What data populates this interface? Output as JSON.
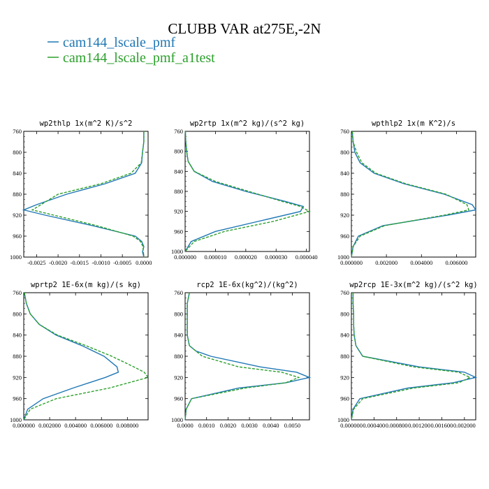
{
  "header": {
    "title": "CLUBB VAR at275E,-2N"
  },
  "legend": [
    {
      "label": "cam144_lscale_pmf",
      "color": "#1f77b4",
      "dashed": false
    },
    {
      "label": "cam144_lscale_pmf_a1test",
      "color": "#2ca02c",
      "dashed": true
    }
  ],
  "chart_data": [
    {
      "type": "line",
      "title": "wp2thlp  1x(m^2 K)/s^2",
      "xlim": [
        -0.0028,
        0.0001
      ],
      "ylim": [
        760,
        1000
      ],
      "y_inverted": true,
      "xticks": [
        -0.0025,
        -0.002,
        -0.0015,
        -0.001,
        -0.0005,
        0.0
      ],
      "xtick_labels": [
        "-0.0025",
        "-0.0020",
        "-0.0015",
        "-0.0010",
        "-0.0005",
        "0.0000"
      ],
      "yticks": [
        760,
        800,
        840,
        880,
        920,
        960,
        1000
      ],
      "y": [
        760,
        780,
        800,
        820,
        840,
        860,
        880,
        900,
        910,
        920,
        940,
        960,
        970,
        980,
        990,
        1000
      ],
      "series": [
        {
          "name": "cam144_lscale_pmf",
          "values": [
            0.0,
            0.0,
            -3e-05,
            -5e-05,
            -0.0002,
            -0.0009,
            -0.0018,
            -0.0025,
            -0.0028,
            -0.0023,
            -0.0012,
            -0.0002,
            -5e-05,
            0.0,
            -3e-05,
            0.0
          ]
        },
        {
          "name": "cam144_lscale_pmf_a1test",
          "values": [
            0.0,
            0.0,
            -3e-05,
            -6e-05,
            -0.0003,
            -0.001,
            -0.002,
            -0.0024,
            -0.0026,
            -0.0021,
            -0.0011,
            -0.00025,
            -8e-05,
            -2e-05,
            -1e-05,
            0.0
          ]
        }
      ]
    },
    {
      "type": "line",
      "title": "wp2rtp  1x(m^2 kg)/(s^2 kg)",
      "xlim": [
        0.0,
        4.1e-05
      ],
      "ylim": [
        760,
        1000
      ],
      "y_inverted": true,
      "xticks": [
        0.0,
        1e-05,
        2e-05,
        3e-05,
        4e-05
      ],
      "xtick_labels": [
        "0.000000",
        "0.000010",
        "0.000020",
        "0.000030",
        "0.000040"
      ],
      "yticks": [
        760,
        800,
        840,
        880,
        920,
        960,
        1000
      ],
      "y": [
        760,
        780,
        800,
        820,
        840,
        860,
        880,
        900,
        910,
        920,
        940,
        960,
        980,
        1000
      ],
      "series": [
        {
          "name": "cam144_lscale_pmf",
          "values": [
            1e-07,
            2e-07,
            5e-07,
            1e-06,
            3e-06,
            9e-06,
            2e-05,
            3.3e-05,
            3.9e-05,
            3.8e-05,
            2.4e-05,
            1e-05,
            2e-06,
            0.0
          ]
        },
        {
          "name": "cam144_lscale_pmf_a1test",
          "values": [
            1e-07,
            2e-07,
            5e-07,
            1e-06,
            3e-06,
            1e-05,
            2.1e-05,
            3.2e-05,
            3.8e-05,
            4.1e-05,
            2.9e-05,
            1.3e-05,
            3e-06,
            0.0
          ]
        }
      ]
    },
    {
      "type": "line",
      "title": "wpthlp2  1x(m K^2)/s",
      "xlim": [
        0.0,
        0.0071
      ],
      "ylim": [
        760,
        1000
      ],
      "y_inverted": true,
      "xticks": [
        0.0,
        0.002,
        0.004,
        0.006
      ],
      "xtick_labels": [
        "0.000000",
        "0.002000",
        "0.004000",
        "0.006000"
      ],
      "yticks": [
        760,
        800,
        840,
        880,
        920,
        960,
        1000
      ],
      "y": [
        760,
        780,
        800,
        820,
        840,
        860,
        880,
        900,
        910,
        920,
        940,
        960,
        980,
        1000
      ],
      "series": [
        {
          "name": "cam144_lscale_pmf",
          "values": [
            5e-05,
            0.0001,
            0.0002,
            0.0005,
            0.0013,
            0.003,
            0.0053,
            0.0069,
            0.0071,
            0.0055,
            0.0018,
            0.0004,
            0.0001,
            0.0
          ]
        },
        {
          "name": "cam144_lscale_pmf_a1test",
          "values": [
            5e-05,
            0.0001,
            0.0003,
            0.0006,
            0.0014,
            0.0031,
            0.0054,
            0.0066,
            0.0067,
            0.0053,
            0.0019,
            0.0005,
            0.0001,
            0.0
          ]
        }
      ]
    },
    {
      "type": "line",
      "title": "wprtp2  1E-6x(m kg)/(s kg)",
      "xlim": [
        0.0,
        0.0096
      ],
      "ylim": [
        760,
        1000
      ],
      "y_inverted": true,
      "xticks": [
        0.0,
        0.002,
        0.004,
        0.006,
        0.008
      ],
      "xtick_labels": [
        "0.000000",
        "0.002000",
        "0.004000",
        "0.006000",
        "0.008000"
      ],
      "yticks": [
        760,
        800,
        840,
        880,
        920,
        960,
        1000
      ],
      "y": [
        760,
        780,
        800,
        820,
        840,
        860,
        880,
        900,
        910,
        920,
        940,
        960,
        980,
        1000
      ],
      "series": [
        {
          "name": "cam144_lscale_pmf",
          "values": [
            5e-05,
            0.0002,
            0.0005,
            0.0012,
            0.0025,
            0.0045,
            0.0062,
            0.0072,
            0.0073,
            0.0063,
            0.0038,
            0.0015,
            0.0003,
            0.0
          ]
        },
        {
          "name": "cam144_lscale_pmf_a1test",
          "values": [
            5e-05,
            0.0002,
            0.0005,
            0.0012,
            0.0026,
            0.0048,
            0.0068,
            0.0085,
            0.0093,
            0.0096,
            0.0066,
            0.0025,
            0.0005,
            0.0
          ]
        }
      ]
    },
    {
      "type": "line",
      "title": "rcp2  1E-6x(kg^2)/(kg^2)",
      "xlim": [
        0.0,
        0.0058
      ],
      "ylim": [
        760,
        1000
      ],
      "y_inverted": true,
      "xticks": [
        0.0,
        0.001,
        0.002,
        0.003,
        0.004,
        0.005
      ],
      "xtick_labels": [
        "0.0000",
        "0.0010",
        "0.0020",
        "0.0030",
        "0.0040",
        "0.0050"
      ],
      "yticks": [
        760,
        800,
        840,
        880,
        920,
        960,
        1000
      ],
      "y": [
        760,
        780,
        800,
        820,
        840,
        860,
        870,
        880,
        900,
        910,
        920,
        930,
        940,
        960,
        980,
        1000
      ],
      "series": [
        {
          "name": "cam144_lscale_pmf",
          "values": [
            0.0002,
            0.0001,
            0.0001,
            0.0001,
            0.0001,
            0.0002,
            0.0005,
            0.0012,
            0.0035,
            0.0052,
            0.0058,
            0.0047,
            0.0025,
            0.0003,
            5e-05,
            0.0
          ]
        },
        {
          "name": "cam144_lscale_pmf_a1test",
          "values": [
            0.0002,
            0.0001,
            0.0001,
            0.0001,
            0.0001,
            0.0002,
            0.0005,
            0.0008,
            0.0025,
            0.0045,
            0.0053,
            0.0047,
            0.0028,
            0.0003,
            5e-05,
            0.0
          ]
        }
      ]
    },
    {
      "type": "line",
      "title": "wp2rcp  1E-3x(m^2 kg)/(s^2 kg)",
      "xlim": [
        0.0,
        0.0022
      ],
      "ylim": [
        760,
        1000
      ],
      "y_inverted": true,
      "xticks": [
        0.0,
        0.0004,
        0.0008,
        0.0012,
        0.0016,
        0.002
      ],
      "xtick_labels": [
        "0.000000",
        "0.000400",
        "0.000800",
        "0.001200",
        "0.001600",
        "0.002000"
      ],
      "yticks": [
        760,
        800,
        840,
        880,
        920,
        960,
        1000
      ],
      "y": [
        760,
        780,
        800,
        820,
        840,
        860,
        880,
        900,
        910,
        920,
        930,
        940,
        960,
        980,
        1000
      ],
      "series": [
        {
          "name": "cam144_lscale_pmf",
          "values": [
            3e-05,
            3e-05,
            4e-05,
            4e-05,
            5e-05,
            8e-05,
            0.0002,
            0.0012,
            0.002,
            0.0022,
            0.0018,
            0.001,
            0.00015,
            3e-05,
            0.0
          ]
        },
        {
          "name": "cam144_lscale_pmf_a1test",
          "values": [
            3e-05,
            3e-05,
            4e-05,
            4e-05,
            5e-05,
            8e-05,
            0.0002,
            0.0011,
            0.0019,
            0.0021,
            0.0019,
            0.0011,
            0.0002,
            4e-05,
            0.0
          ]
        }
      ]
    }
  ]
}
